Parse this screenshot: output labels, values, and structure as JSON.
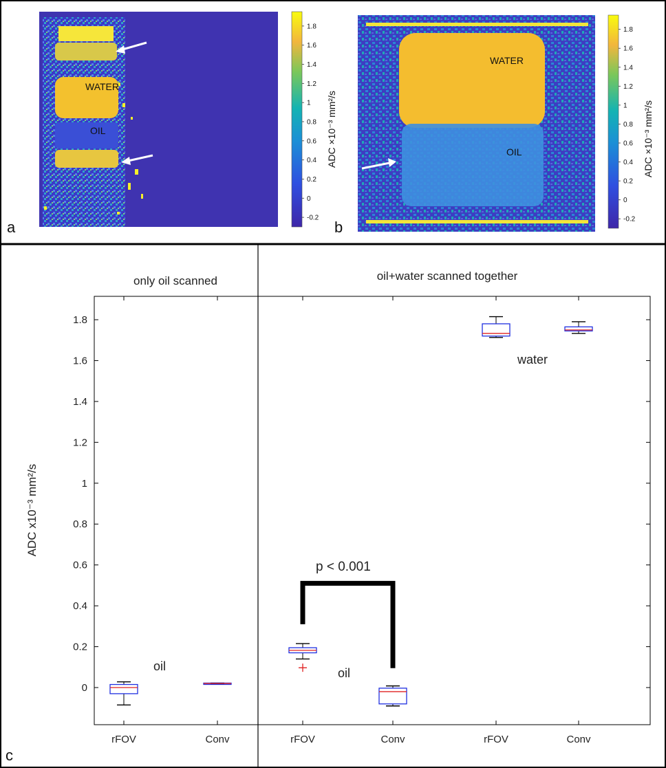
{
  "panels": {
    "a": {
      "letter": "a",
      "labels": {
        "water": "WATER",
        "oil": "OIL"
      },
      "colorbar": {
        "title": "ADC ×10⁻³ mm²/s",
        "ticks": [
          "1.8",
          "1.6",
          "1.4",
          "1.2",
          "1",
          "0.8",
          "0.6",
          "0.4",
          "0.2",
          "0",
          "-0.2"
        ]
      }
    },
    "b": {
      "letter": "b",
      "labels": {
        "water": "WATER",
        "oil": "OIL"
      },
      "colorbar": {
        "title": "ADC ×10⁻³ mm²/s",
        "ticks": [
          "1.8",
          "1.6",
          "1.4",
          "1.2",
          "1",
          "0.8",
          "0.6",
          "0.4",
          "0.2",
          "0",
          "-0.2"
        ]
      }
    },
    "c": {
      "letter": "c"
    }
  },
  "colors": {
    "colormap_low": "#3b2f9e",
    "colormap_mid": "#1fa5b5",
    "colormap_high": "#f7d23a",
    "box_edge": "#1f2fe0",
    "median": "#e02020",
    "outlier": "#e02020",
    "bracket": "#000000"
  },
  "chart_data": {
    "type": "box",
    "ylabel": "ADC x10⁻³ mm²/s",
    "ylim": [
      -0.12,
      1.9
    ],
    "yticks": [
      "0",
      "0.2",
      "0.4",
      "0.6",
      "0.8",
      "1",
      "1.2",
      "1.4",
      "1.6",
      "1.8"
    ],
    "groups": [
      {
        "title": "only oil scanned",
        "annotations": [
          "oil"
        ]
      },
      {
        "title": "oil+water scanned together",
        "annotations": [
          "oil",
          "water"
        ]
      }
    ],
    "categories": [
      "rFOV",
      "Conv",
      "rFOV",
      "Conv",
      "rFOV",
      "Conv"
    ],
    "boxes": [
      {
        "category": "rFOV",
        "group": "only oil scanned",
        "sample": "oil",
        "whisker_low": -0.085,
        "q1": -0.03,
        "median": 0.0,
        "q3": 0.015,
        "whisker_high": 0.028,
        "outliers": []
      },
      {
        "category": "Conv",
        "group": "only oil scanned",
        "sample": "oil",
        "whisker_low": 0.017,
        "q1": 0.017,
        "median": 0.02,
        "q3": 0.022,
        "whisker_high": 0.022,
        "outliers": []
      },
      {
        "category": "rFOV",
        "group": "oil+water scanned together",
        "sample": "oil",
        "whisker_low": 0.14,
        "q1": 0.17,
        "median": 0.182,
        "q3": 0.195,
        "whisker_high": 0.215,
        "outliers": [
          0.097
        ]
      },
      {
        "category": "Conv",
        "group": "oil+water scanned together",
        "sample": "oil",
        "whisker_low": -0.09,
        "q1": -0.08,
        "median": -0.02,
        "q3": -0.003,
        "whisker_high": 0.008,
        "outliers": []
      },
      {
        "category": "rFOV",
        "group": "oil+water scanned together",
        "sample": "water",
        "whisker_low": 1.713,
        "q1": 1.72,
        "median": 1.733,
        "q3": 1.78,
        "whisker_high": 1.815,
        "outliers": []
      },
      {
        "category": "Conv",
        "group": "oil+water scanned together",
        "sample": "water",
        "whisker_low": 1.733,
        "q1": 1.745,
        "median": 1.75,
        "q3": 1.765,
        "whisker_high": 1.79,
        "outliers": []
      }
    ],
    "significance": {
      "label": "p < 0.001",
      "between": [
        2,
        3
      ],
      "bar_y": 0.51,
      "left_end": 0.31,
      "right_end": 0.095
    }
  }
}
